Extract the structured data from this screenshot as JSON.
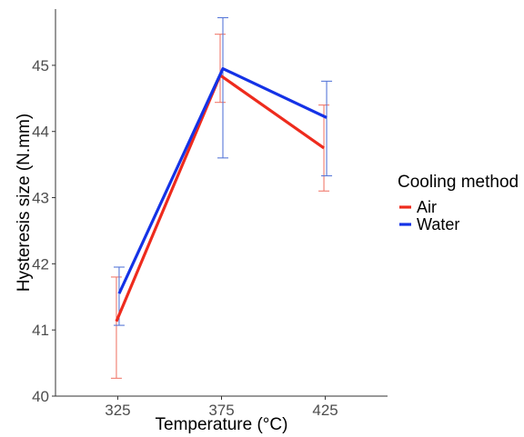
{
  "chart_data": {
    "type": "line",
    "title": "",
    "xlabel": "Temperature (°C)",
    "ylabel": "Hysteresis size (N.mm)",
    "categories": [
      "325",
      "375",
      "425"
    ],
    "ylim": [
      40,
      45.85
    ],
    "yticks": [
      40,
      41,
      42,
      43,
      44,
      45
    ],
    "grid": false,
    "legend": {
      "title": "Cooling method",
      "position": "right"
    },
    "series": [
      {
        "name": "Air",
        "color": "#ee2b1d",
        "errorbar_color": "#f07b6e",
        "values": [
          41.13,
          44.85,
          43.75
        ],
        "lower": [
          40.27,
          44.44,
          43.1
        ],
        "upper": [
          41.8,
          45.47,
          44.4
        ]
      },
      {
        "name": "Water",
        "color": "#1432e6",
        "errorbar_color": "#5878d8",
        "values": [
          41.55,
          44.95,
          44.21
        ],
        "lower": [
          41.07,
          43.6,
          43.33
        ],
        "upper": [
          41.95,
          45.72,
          44.76
        ]
      }
    ]
  }
}
